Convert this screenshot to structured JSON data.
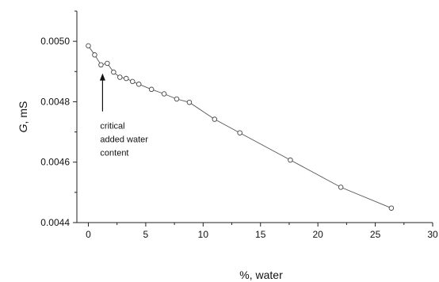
{
  "chart_data": {
    "type": "line",
    "xlabel": "%, water",
    "ylabel_italic": "G",
    "ylabel_rest": ", mS",
    "xlim": [
      -1,
      30
    ],
    "ylim": [
      0.0044,
      0.0051
    ],
    "x_ticks": [
      0,
      5,
      10,
      15,
      20,
      25,
      30
    ],
    "x_tick_labels": [
      "0",
      "5",
      "10",
      "15",
      "20",
      "25",
      "30"
    ],
    "y_ticks": [
      0.0044,
      0.0046,
      0.0048,
      0.005
    ],
    "y_tick_labels": [
      "0.0044",
      "0.0046",
      "0.0048",
      "0.0050"
    ],
    "grid": false,
    "series": [
      {
        "x": [
          0.0,
          0.55,
          1.1,
          1.65,
          2.2,
          2.75,
          3.3,
          3.85,
          4.4,
          5.5,
          6.6,
          7.7,
          8.8,
          11.0,
          13.2,
          17.6,
          22.0,
          26.4
        ],
        "y": [
          0.004985,
          0.004955,
          0.004922,
          0.004927,
          0.004898,
          0.004881,
          0.004877,
          0.004867,
          0.004858,
          0.004841,
          0.004826,
          0.004809,
          0.004798,
          0.004742,
          0.004697,
          0.004607,
          0.004517,
          0.004448
        ]
      }
    ],
    "annotation": {
      "lines": [
        "critical",
        "added water",
        "content"
      ],
      "arrow_target_x": 1.1,
      "arrow_target_y": 0.00492
    }
  }
}
